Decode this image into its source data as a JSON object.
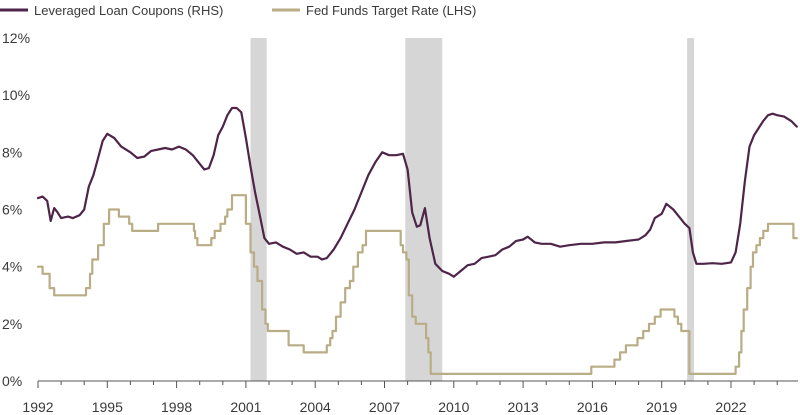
{
  "chart_data": {
    "type": "line",
    "title": "",
    "xlabel": "",
    "ylabel": "",
    "xlim": [
      1992,
      2024.9
    ],
    "ylim": [
      0,
      12
    ],
    "grid": false,
    "legend_position": "top-left",
    "x_ticks": [
      "1992",
      "1995",
      "1998",
      "2001",
      "2004",
      "2007",
      "2010",
      "2013",
      "2016",
      "2019",
      "2022"
    ],
    "x_tick_values": [
      1992,
      1995,
      1998,
      2001,
      2004,
      2007,
      2010,
      2013,
      2016,
      2019,
      2022
    ],
    "y_ticks": [
      "0%",
      "2%",
      "4%",
      "6%",
      "8%",
      "10%",
      "12%"
    ],
    "y_tick_values": [
      0,
      2,
      4,
      6,
      8,
      10,
      12
    ],
    "recessions": [
      [
        2001.2,
        2001.9
      ],
      [
        2007.9,
        2009.5
      ],
      [
        2020.1,
        2020.4
      ]
    ],
    "series": [
      {
        "name": "Leveraged Loan Coupons (RHS)",
        "color": "#4e2549",
        "points": [
          [
            1992.0,
            6.4
          ],
          [
            1992.2,
            6.45
          ],
          [
            1992.4,
            6.3
          ],
          [
            1992.55,
            5.6
          ],
          [
            1992.7,
            6.05
          ],
          [
            1992.85,
            5.9
          ],
          [
            1993.0,
            5.7
          ],
          [
            1993.3,
            5.75
          ],
          [
            1993.5,
            5.7
          ],
          [
            1993.8,
            5.8
          ],
          [
            1994.0,
            6.0
          ],
          [
            1994.2,
            6.8
          ],
          [
            1994.4,
            7.2
          ],
          [
            1994.6,
            7.8
          ],
          [
            1994.8,
            8.4
          ],
          [
            1995.0,
            8.65
          ],
          [
            1995.3,
            8.5
          ],
          [
            1995.6,
            8.2
          ],
          [
            1996.0,
            8.0
          ],
          [
            1996.3,
            7.8
          ],
          [
            1996.6,
            7.85
          ],
          [
            1996.9,
            8.05
          ],
          [
            1997.2,
            8.1
          ],
          [
            1997.5,
            8.15
          ],
          [
            1997.8,
            8.1
          ],
          [
            1998.1,
            8.2
          ],
          [
            1998.4,
            8.1
          ],
          [
            1998.7,
            7.9
          ],
          [
            1999.0,
            7.6
          ],
          [
            1999.2,
            7.4
          ],
          [
            1999.4,
            7.45
          ],
          [
            1999.6,
            7.9
          ],
          [
            1999.8,
            8.6
          ],
          [
            2000.0,
            8.9
          ],
          [
            2000.2,
            9.3
          ],
          [
            2000.4,
            9.55
          ],
          [
            2000.6,
            9.55
          ],
          [
            2000.8,
            9.4
          ],
          [
            2001.0,
            8.5
          ],
          [
            2001.2,
            7.5
          ],
          [
            2001.4,
            6.6
          ],
          [
            2001.6,
            5.8
          ],
          [
            2001.8,
            5.0
          ],
          [
            2002.0,
            4.8
          ],
          [
            2002.3,
            4.85
          ],
          [
            2002.6,
            4.7
          ],
          [
            2002.9,
            4.6
          ],
          [
            2003.2,
            4.45
          ],
          [
            2003.5,
            4.5
          ],
          [
            2003.8,
            4.35
          ],
          [
            2004.1,
            4.35
          ],
          [
            2004.3,
            4.25
          ],
          [
            2004.5,
            4.3
          ],
          [
            2004.8,
            4.6
          ],
          [
            2005.1,
            5.0
          ],
          [
            2005.4,
            5.5
          ],
          [
            2005.7,
            6.0
          ],
          [
            2006.0,
            6.6
          ],
          [
            2006.3,
            7.2
          ],
          [
            2006.6,
            7.65
          ],
          [
            2006.9,
            8.0
          ],
          [
            2007.2,
            7.9
          ],
          [
            2007.5,
            7.9
          ],
          [
            2007.8,
            7.95
          ],
          [
            2008.0,
            7.4
          ],
          [
            2008.2,
            5.9
          ],
          [
            2008.4,
            5.4
          ],
          [
            2008.55,
            5.45
          ],
          [
            2008.75,
            6.05
          ],
          [
            2008.95,
            5.0
          ],
          [
            2009.2,
            4.1
          ],
          [
            2009.5,
            3.85
          ],
          [
            2009.8,
            3.75
          ],
          [
            2010.0,
            3.65
          ],
          [
            2010.3,
            3.85
          ],
          [
            2010.6,
            4.05
          ],
          [
            2010.9,
            4.1
          ],
          [
            2011.2,
            4.3
          ],
          [
            2011.5,
            4.35
          ],
          [
            2011.8,
            4.4
          ],
          [
            2012.1,
            4.6
          ],
          [
            2012.4,
            4.7
          ],
          [
            2012.7,
            4.9
          ],
          [
            2013.0,
            4.95
          ],
          [
            2013.2,
            5.05
          ],
          [
            2013.5,
            4.85
          ],
          [
            2013.8,
            4.8
          ],
          [
            2014.2,
            4.8
          ],
          [
            2014.6,
            4.7
          ],
          [
            2015.0,
            4.75
          ],
          [
            2015.5,
            4.8
          ],
          [
            2016.0,
            4.8
          ],
          [
            2016.5,
            4.85
          ],
          [
            2017.0,
            4.85
          ],
          [
            2017.5,
            4.9
          ],
          [
            2018.0,
            4.95
          ],
          [
            2018.3,
            5.1
          ],
          [
            2018.5,
            5.3
          ],
          [
            2018.7,
            5.7
          ],
          [
            2018.9,
            5.8
          ],
          [
            2019.0,
            5.85
          ],
          [
            2019.2,
            6.2
          ],
          [
            2019.5,
            6.0
          ],
          [
            2019.8,
            5.7
          ],
          [
            2020.0,
            5.5
          ],
          [
            2020.2,
            5.35
          ],
          [
            2020.35,
            4.5
          ],
          [
            2020.5,
            4.1
          ],
          [
            2020.8,
            4.1
          ],
          [
            2021.2,
            4.12
          ],
          [
            2021.6,
            4.1
          ],
          [
            2022.0,
            4.15
          ],
          [
            2022.2,
            4.5
          ],
          [
            2022.4,
            5.5
          ],
          [
            2022.6,
            7.0
          ],
          [
            2022.8,
            8.2
          ],
          [
            2023.0,
            8.6
          ],
          [
            2023.2,
            8.85
          ],
          [
            2023.4,
            9.1
          ],
          [
            2023.6,
            9.3
          ],
          [
            2023.8,
            9.35
          ],
          [
            2024.0,
            9.3
          ],
          [
            2024.3,
            9.25
          ],
          [
            2024.6,
            9.1
          ],
          [
            2024.85,
            8.9
          ]
        ]
      },
      {
        "name": "Fed Funds Target Rate (LHS)",
        "color": "#b9ad85",
        "points": [
          [
            1992.0,
            4.0
          ],
          [
            1992.2,
            4.0
          ],
          [
            1992.2,
            3.75
          ],
          [
            1992.5,
            3.75
          ],
          [
            1992.5,
            3.25
          ],
          [
            1992.7,
            3.25
          ],
          [
            1992.7,
            3.0
          ],
          [
            1994.08,
            3.0
          ],
          [
            1994.08,
            3.25
          ],
          [
            1994.25,
            3.25
          ],
          [
            1994.25,
            3.75
          ],
          [
            1994.35,
            3.75
          ],
          [
            1994.35,
            4.25
          ],
          [
            1994.6,
            4.25
          ],
          [
            1994.6,
            4.75
          ],
          [
            1994.85,
            4.75
          ],
          [
            1994.85,
            5.5
          ],
          [
            1995.08,
            5.5
          ],
          [
            1995.08,
            6.0
          ],
          [
            1995.5,
            6.0
          ],
          [
            1995.5,
            5.75
          ],
          [
            1995.95,
            5.75
          ],
          [
            1995.95,
            5.5
          ],
          [
            1996.08,
            5.5
          ],
          [
            1996.08,
            5.25
          ],
          [
            1997.2,
            5.25
          ],
          [
            1997.2,
            5.5
          ],
          [
            1998.75,
            5.5
          ],
          [
            1998.75,
            5.25
          ],
          [
            1998.8,
            5.25
          ],
          [
            1998.8,
            5.0
          ],
          [
            1998.9,
            5.0
          ],
          [
            1998.9,
            4.75
          ],
          [
            1999.5,
            4.75
          ],
          [
            1999.5,
            5.0
          ],
          [
            1999.65,
            5.0
          ],
          [
            1999.65,
            5.25
          ],
          [
            1999.9,
            5.25
          ],
          [
            1999.9,
            5.5
          ],
          [
            2000.1,
            5.5
          ],
          [
            2000.1,
            5.75
          ],
          [
            2000.2,
            5.75
          ],
          [
            2000.2,
            6.0
          ],
          [
            2000.4,
            6.0
          ],
          [
            2000.4,
            6.5
          ],
          [
            2001.0,
            6.5
          ],
          [
            2001.0,
            5.5
          ],
          [
            2001.2,
            5.5
          ],
          [
            2001.2,
            4.5
          ],
          [
            2001.35,
            4.5
          ],
          [
            2001.35,
            4.0
          ],
          [
            2001.5,
            4.0
          ],
          [
            2001.5,
            3.5
          ],
          [
            2001.7,
            3.5
          ],
          [
            2001.7,
            2.5
          ],
          [
            2001.85,
            2.5
          ],
          [
            2001.85,
            2.0
          ],
          [
            2001.95,
            2.0
          ],
          [
            2001.95,
            1.75
          ],
          [
            2002.85,
            1.75
          ],
          [
            2002.85,
            1.25
          ],
          [
            2003.5,
            1.25
          ],
          [
            2003.5,
            1.0
          ],
          [
            2004.5,
            1.0
          ],
          [
            2004.5,
            1.25
          ],
          [
            2004.65,
            1.25
          ],
          [
            2004.65,
            1.5
          ],
          [
            2004.75,
            1.5
          ],
          [
            2004.75,
            1.75
          ],
          [
            2004.9,
            1.75
          ],
          [
            2004.9,
            2.25
          ],
          [
            2005.1,
            2.25
          ],
          [
            2005.1,
            2.75
          ],
          [
            2005.3,
            2.75
          ],
          [
            2005.3,
            3.25
          ],
          [
            2005.5,
            3.25
          ],
          [
            2005.5,
            3.5
          ],
          [
            2005.65,
            3.5
          ],
          [
            2005.65,
            4.0
          ],
          [
            2005.85,
            4.0
          ],
          [
            2005.85,
            4.5
          ],
          [
            2006.05,
            4.5
          ],
          [
            2006.05,
            4.75
          ],
          [
            2006.2,
            4.75
          ],
          [
            2006.2,
            5.25
          ],
          [
            2007.7,
            5.25
          ],
          [
            2007.7,
            4.75
          ],
          [
            2007.8,
            4.75
          ],
          [
            2007.8,
            4.5
          ],
          [
            2007.95,
            4.5
          ],
          [
            2007.95,
            4.25
          ],
          [
            2008.05,
            4.25
          ],
          [
            2008.05,
            3.0
          ],
          [
            2008.2,
            3.0
          ],
          [
            2008.2,
            2.25
          ],
          [
            2008.35,
            2.25
          ],
          [
            2008.35,
            2.0
          ],
          [
            2008.8,
            2.0
          ],
          [
            2008.8,
            1.5
          ],
          [
            2008.9,
            1.5
          ],
          [
            2008.9,
            1.0
          ],
          [
            2009.0,
            1.0
          ],
          [
            2009.0,
            0.25
          ],
          [
            2015.95,
            0.25
          ],
          [
            2015.95,
            0.5
          ],
          [
            2016.95,
            0.5
          ],
          [
            2016.95,
            0.75
          ],
          [
            2017.2,
            0.75
          ],
          [
            2017.2,
            1.0
          ],
          [
            2017.45,
            1.0
          ],
          [
            2017.45,
            1.25
          ],
          [
            2017.95,
            1.25
          ],
          [
            2017.95,
            1.5
          ],
          [
            2018.2,
            1.5
          ],
          [
            2018.2,
            1.75
          ],
          [
            2018.45,
            1.75
          ],
          [
            2018.45,
            2.0
          ],
          [
            2018.7,
            2.0
          ],
          [
            2018.7,
            2.25
          ],
          [
            2018.95,
            2.25
          ],
          [
            2018.95,
            2.5
          ],
          [
            2019.55,
            2.5
          ],
          [
            2019.55,
            2.25
          ],
          [
            2019.7,
            2.25
          ],
          [
            2019.7,
            2.0
          ],
          [
            2019.85,
            2.0
          ],
          [
            2019.85,
            1.75
          ],
          [
            2020.2,
            1.75
          ],
          [
            2020.2,
            0.25
          ],
          [
            2022.2,
            0.25
          ],
          [
            2022.2,
            0.5
          ],
          [
            2022.35,
            0.5
          ],
          [
            2022.35,
            1.0
          ],
          [
            2022.45,
            1.0
          ],
          [
            2022.45,
            1.75
          ],
          [
            2022.55,
            1.75
          ],
          [
            2022.55,
            2.5
          ],
          [
            2022.7,
            2.5
          ],
          [
            2022.7,
            3.25
          ],
          [
            2022.85,
            3.25
          ],
          [
            2022.85,
            4.0
          ],
          [
            2022.95,
            4.0
          ],
          [
            2022.95,
            4.5
          ],
          [
            2023.1,
            4.5
          ],
          [
            2023.1,
            4.75
          ],
          [
            2023.25,
            4.75
          ],
          [
            2023.25,
            5.0
          ],
          [
            2023.4,
            5.0
          ],
          [
            2023.4,
            5.25
          ],
          [
            2023.6,
            5.25
          ],
          [
            2023.6,
            5.5
          ],
          [
            2024.7,
            5.5
          ],
          [
            2024.7,
            5.0
          ],
          [
            2024.85,
            5.0
          ]
        ]
      }
    ]
  }
}
